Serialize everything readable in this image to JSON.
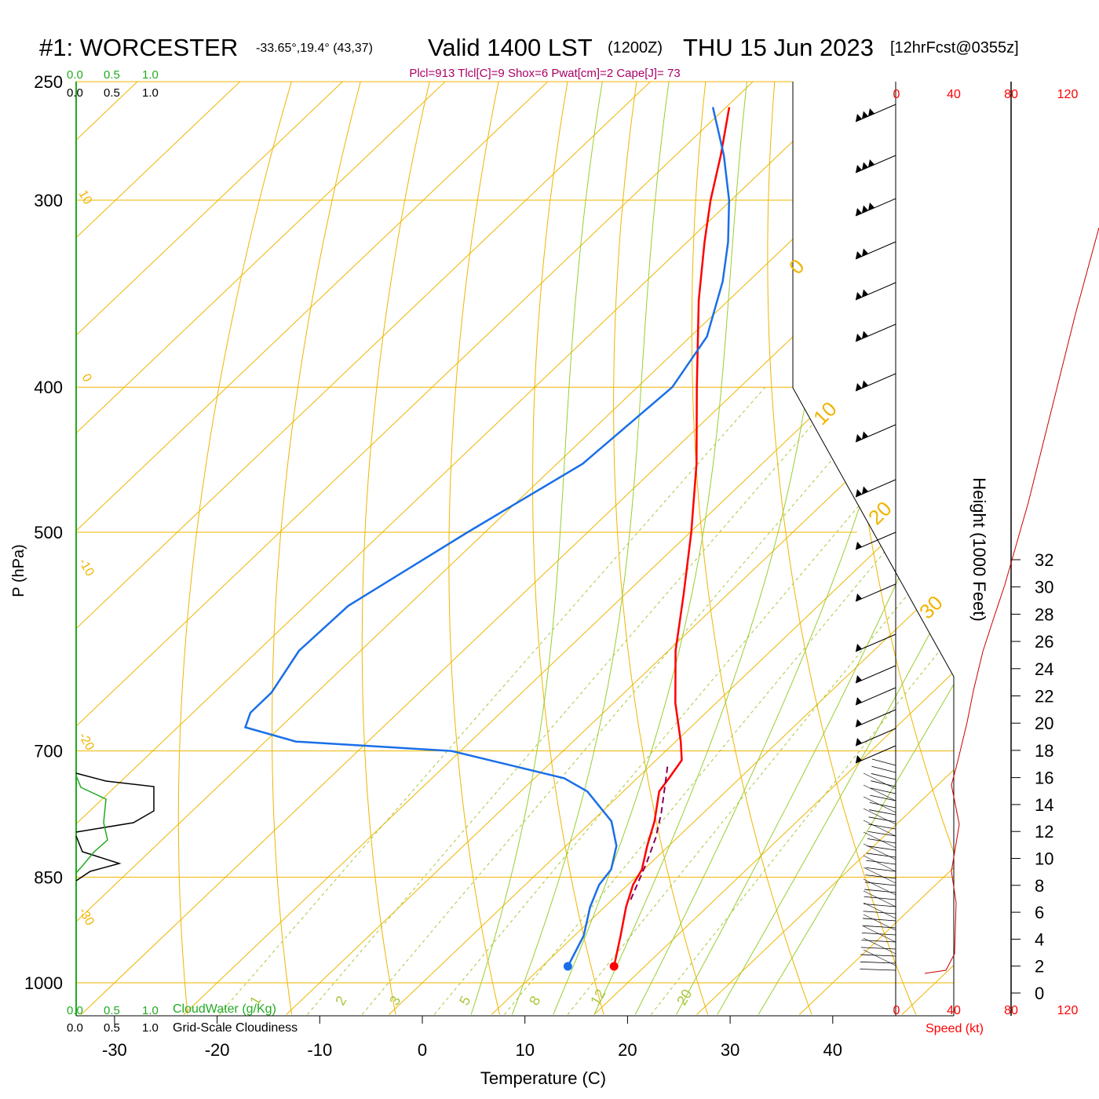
{
  "header": {
    "station": "#1: WORCESTER",
    "coords": "-33.65°,19.4° (43,37)",
    "valid": "Valid 1400 LST",
    "utc": "(1200Z)",
    "date": "THU 15 Jun 2023",
    "forecast": "[12hrFcst@0355z]",
    "indices": "Plcl=913 Tlcl[C]=9 Shox=6 Pwat[cm]=2 Cape[J]= 73"
  },
  "colors": {
    "temperature": "#ff0000",
    "dewpoint": "#1a6fe8",
    "isotherm": "#f0b400",
    "mixing_ratio": "#a8c83c",
    "moist_adiabat": "#9acd32",
    "cloud_water": "#22aa22",
    "parcel": "#880055",
    "indices_text": "#aa0066"
  },
  "chart_data": {
    "type": "line",
    "xlabel": "Temperature (C)",
    "ylabel": "P (hPa)",
    "xticks": [
      -30,
      -20,
      -10,
      0,
      10,
      20,
      30,
      40
    ],
    "pressure_ticks": [
      250,
      300,
      400,
      500,
      700,
      850,
      1000
    ],
    "pressure_range": [
      250,
      1000
    ],
    "skew_labels_isotherm": [
      "10",
      "0",
      "-10",
      "-20",
      "-30",
      "0",
      "10",
      "20",
      "30"
    ],
    "mixing_ratio_labels": [
      "1",
      "2",
      "3",
      "5",
      "8",
      "12",
      "20"
    ],
    "series": [
      {
        "name": "temperature",
        "points": [
          {
            "p": 975,
            "t": 17.0
          },
          {
            "p": 930,
            "t": 14.5
          },
          {
            "p": 890,
            "t": 12.1
          },
          {
            "p": 860,
            "t": 10.5
          },
          {
            "p": 840,
            "t": 9.8
          },
          {
            "p": 810,
            "t": 7.9
          },
          {
            "p": 780,
            "t": 6.1
          },
          {
            "p": 745,
            "t": 3.5
          },
          {
            "p": 730,
            "t": 3.1
          },
          {
            "p": 710,
            "t": 2.5
          },
          {
            "p": 690,
            "t": 0.5
          },
          {
            "p": 650,
            "t": -4.0
          },
          {
            "p": 600,
            "t": -9.3
          },
          {
            "p": 550,
            "t": -14.3
          },
          {
            "p": 500,
            "t": -19.9
          },
          {
            "p": 450,
            "t": -26.4
          },
          {
            "p": 400,
            "t": -34.2
          },
          {
            "p": 350,
            "t": -42.9
          },
          {
            "p": 320,
            "t": -48.3
          },
          {
            "p": 300,
            "t": -52.0
          },
          {
            "p": 280,
            "t": -55.6
          },
          {
            "p": 260,
            "t": -59.7
          }
        ]
      },
      {
        "name": "dewpoint",
        "points": [
          {
            "p": 975,
            "t": 12.5
          },
          {
            "p": 930,
            "t": 10.9
          },
          {
            "p": 890,
            "t": 8.6
          },
          {
            "p": 860,
            "t": 7.2
          },
          {
            "p": 840,
            "t": 6.8
          },
          {
            "p": 810,
            "t": 4.9
          },
          {
            "p": 780,
            "t": 1.9
          },
          {
            "p": 745,
            "t": -3.5
          },
          {
            "p": 730,
            "t": -7.1
          },
          {
            "p": 700,
            "t": -20.9
          },
          {
            "p": 690,
            "t": -37.0
          },
          {
            "p": 675,
            "t": -43.4
          },
          {
            "p": 660,
            "t": -44.4
          },
          {
            "p": 640,
            "t": -44.4
          },
          {
            "p": 600,
            "t": -46.0
          },
          {
            "p": 560,
            "t": -45.8
          },
          {
            "p": 500,
            "t": -41.7
          },
          {
            "p": 450,
            "t": -37.5
          },
          {
            "p": 400,
            "t": -36.6
          },
          {
            "p": 370,
            "t": -38.4
          },
          {
            "p": 340,
            "t": -42.5
          },
          {
            "p": 320,
            "t": -46.0
          },
          {
            "p": 300,
            "t": -50.2
          },
          {
            "p": 280,
            "t": -55.3
          },
          {
            "p": 260,
            "t": -61.3
          }
        ]
      },
      {
        "name": "parcel",
        "points": [
          {
            "p": 880,
            "t": 11.8
          },
          {
            "p": 860,
            "t": 10.9
          },
          {
            "p": 830,
            "t": 9.5
          },
          {
            "p": 800,
            "t": 7.9
          },
          {
            "p": 770,
            "t": 5.9
          },
          {
            "p": 740,
            "t": 3.6
          },
          {
            "p": 715,
            "t": 1.6
          }
        ]
      }
    ],
    "surface_temperature": {
      "p": 975,
      "t": 17.0
    },
    "surface_dewpoint": {
      "p": 975,
      "t": 12.5
    }
  },
  "cloud_panel": {
    "ticks": [
      "0.0",
      "0.5",
      "1.0"
    ],
    "cloudwater_label": "CloudWater (g/Kg)",
    "cloudiness_label": "Grid-Scale Cloudiness"
  },
  "wind_panel": {
    "speed_ticks": [
      "0",
      "40",
      "80",
      "120"
    ],
    "speed_label": "Speed (kt)"
  },
  "height_axis": {
    "label": "Height (1000 Feet)",
    "ticks": [
      "0",
      "2",
      "4",
      "6",
      "8",
      "10",
      "12",
      "14",
      "16",
      "18",
      "20",
      "22",
      "24",
      "26",
      "28",
      "30",
      "32"
    ]
  }
}
